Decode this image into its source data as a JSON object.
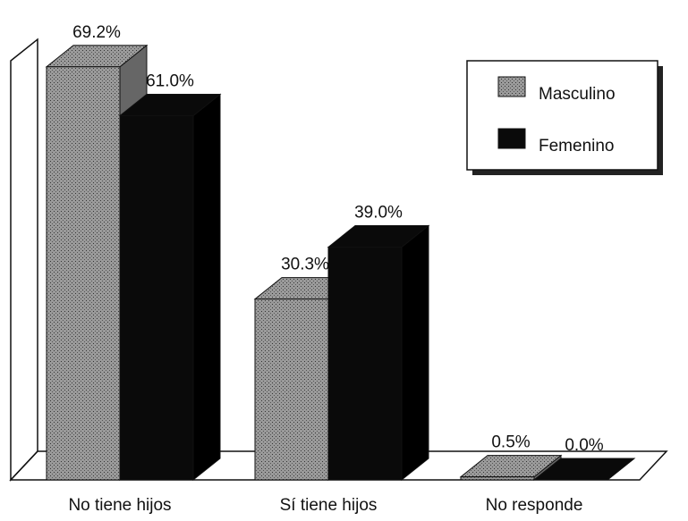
{
  "chart_data": {
    "type": "bar3d",
    "categories": [
      "No tiene hijos",
      "Sí tiene hijos",
      "No responde"
    ],
    "series": [
      {
        "name": "Masculino",
        "color": "#8a8a8a",
        "values": [
          69.2,
          30.3,
          0.5
        ],
        "value_labels": [
          "69.2%",
          "30.3%",
          "0.5%"
        ]
      },
      {
        "name": "Femenino",
        "color": "#0a0a0a",
        "values": [
          61,
          39,
          0
        ],
        "value_labels": [
          "61.0%",
          "39.0%",
          "0.0%"
        ]
      }
    ],
    "legend": "top-right"
  }
}
